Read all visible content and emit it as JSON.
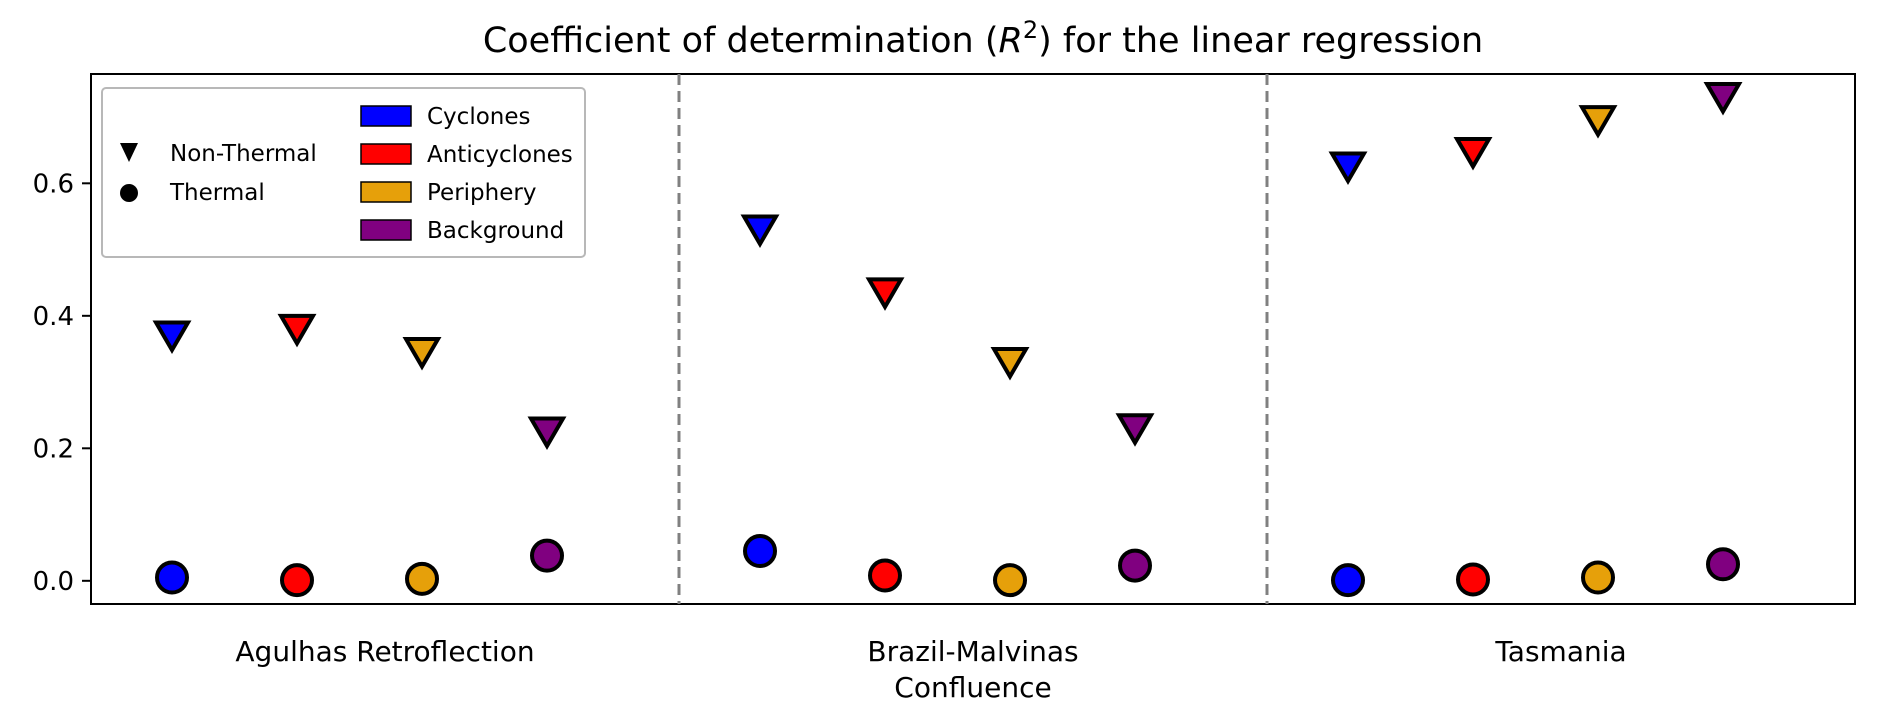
{
  "chart_data": {
    "type": "scatter",
    "title_prefix": "Coefficient of determination (",
    "title_math_base": "R",
    "title_math_exp": "2",
    "title_suffix": ") for the linear regression",
    "xlabel": "",
    "ylabel": "",
    "ylim": [
      -0.035,
      0.765
    ],
    "yticks": [
      0.0,
      0.2,
      0.4,
      0.6
    ],
    "ytick_labels": [
      "0.0",
      "0.2",
      "0.4",
      "0.6"
    ],
    "grid": false,
    "legend_position": "top-left",
    "regions": [
      {
        "label_lines": [
          "Agulhas Retroflection"
        ]
      },
      {
        "label_lines": [
          "Brazil-Malvinas",
          "Confluence"
        ]
      },
      {
        "label_lines": [
          "Tasmania"
        ]
      }
    ],
    "categories": [
      {
        "name": "Cyclones",
        "color": "#0000ff"
      },
      {
        "name": "Anticyclones",
        "color": "#ff0000"
      },
      {
        "name": "Periphery",
        "color": "#e6a00a"
      },
      {
        "name": "Background",
        "color": "#800080"
      }
    ],
    "types": [
      {
        "name": "Non-Thermal",
        "marker": "triangle-down"
      },
      {
        "name": "Thermal",
        "marker": "circle"
      }
    ],
    "series": [
      {
        "region": "Agulhas Retroflection",
        "type": "Non-Thermal",
        "values": [
          0.375,
          0.385,
          0.35,
          0.23
        ]
      },
      {
        "region": "Agulhas Retroflection",
        "type": "Thermal",
        "values": [
          0.005,
          0.001,
          0.003,
          0.038
        ]
      },
      {
        "region": "Brazil-Malvinas Confluence",
        "type": "Non-Thermal",
        "values": [
          0.535,
          0.44,
          0.335,
          0.235
        ]
      },
      {
        "region": "Brazil-Malvinas Confluence",
        "type": "Thermal",
        "values": [
          0.045,
          0.008,
          0.001,
          0.023
        ]
      },
      {
        "region": "Tasmania",
        "type": "Non-Thermal",
        "values": [
          0.63,
          0.652,
          0.7,
          0.735
        ]
      },
      {
        "region": "Tasmania",
        "type": "Thermal",
        "values": [
          0.001,
          0.002,
          0.005,
          0.025
        ]
      }
    ]
  }
}
